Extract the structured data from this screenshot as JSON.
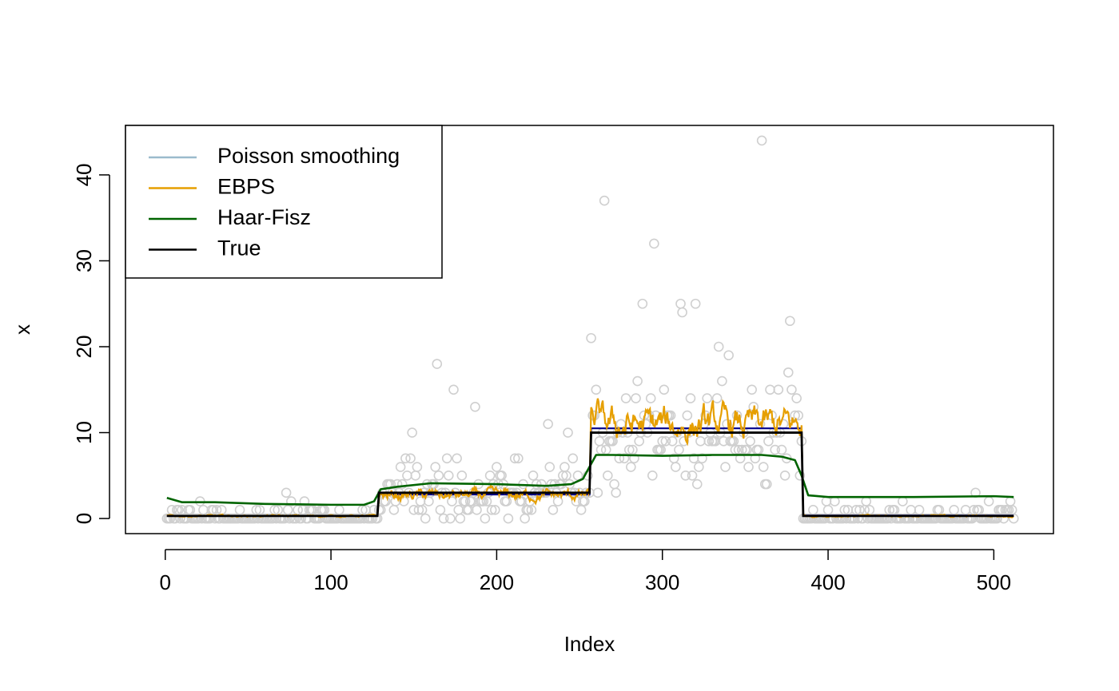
{
  "chart_data": {
    "type": "scatter",
    "title": "",
    "xlabel": "Index",
    "ylabel": "x",
    "xlim": [
      0,
      512
    ],
    "ylim": [
      0,
      44
    ],
    "xticks": [
      0,
      100,
      200,
      300,
      400,
      500
    ],
    "yticks": [
      0,
      10,
      20,
      30,
      40
    ],
    "grid": false,
    "legend": {
      "placement": "top-left",
      "entries": [
        {
          "label": "Poisson smoothing",
          "color": "#9bbbcc"
        },
        {
          "label": "EBPS",
          "color": "#e69f00"
        },
        {
          "label": "Haar-Fisz",
          "color": "#006400"
        },
        {
          "label": "True",
          "color": "#000000"
        }
      ]
    },
    "colors": {
      "points": "#cfcfcf",
      "poisson_smoothing": "#00008b",
      "ebps": "#e69f00",
      "haar_fisz": "#006400",
      "true": "#000000"
    },
    "true_signal": {
      "segments": [
        {
          "x_start": 1,
          "x_end": 128,
          "y": 0.3
        },
        {
          "x_start": 129,
          "x_end": 256,
          "y": 3
        },
        {
          "x_start": 257,
          "x_end": 384,
          "y": 10
        },
        {
          "x_start": 385,
          "x_end": 512,
          "y": 0.3
        }
      ]
    },
    "poisson_smoothing_level": [
      {
        "x_start": 1,
        "x_end": 128,
        "y": 0.3
      },
      {
        "x_start": 129,
        "x_end": 256,
        "y": 2.8
      },
      {
        "x_start": 257,
        "x_end": 384,
        "y": 10.5
      },
      {
        "x_start": 385,
        "x_end": 512,
        "y": 0.35
      }
    ],
    "haar_fisz": {
      "x": [
        1,
        10,
        30,
        60,
        100,
        120,
        126,
        130,
        140,
        160,
        200,
        230,
        245,
        252,
        256,
        260,
        270,
        300,
        330,
        360,
        372,
        380,
        384,
        388,
        400,
        450,
        500,
        512
      ],
      "y": [
        2.4,
        1.9,
        1.9,
        1.7,
        1.6,
        1.6,
        2.0,
        3.4,
        3.7,
        4.1,
        4.0,
        3.8,
        4.0,
        4.6,
        6.0,
        7.4,
        7.4,
        7.3,
        7.4,
        7.4,
        7.2,
        6.8,
        5.0,
        2.7,
        2.5,
        2.5,
        2.6,
        2.5
      ]
    },
    "ebps_approx": {
      "segments": [
        {
          "x_start": 1,
          "x_end": 128,
          "mean": 0.3,
          "spread": 0.1
        },
        {
          "x_start": 129,
          "x_end": 256,
          "mean": 2.7,
          "spread": 0.6
        },
        {
          "x_start": 257,
          "x_end": 384,
          "mean": 10.8,
          "spread": 1.8
        },
        {
          "x_start": 385,
          "x_end": 512,
          "mean": 0.3,
          "spread": 0.1
        }
      ]
    },
    "notable_points": [
      {
        "x": 73,
        "y": 3
      },
      {
        "x": 84,
        "y": 2
      },
      {
        "x": 149,
        "y": 10
      },
      {
        "x": 164,
        "y": 18
      },
      {
        "x": 174,
        "y": 15
      },
      {
        "x": 187,
        "y": 13
      },
      {
        "x": 231,
        "y": 11
      },
      {
        "x": 243,
        "y": 10
      },
      {
        "x": 257,
        "y": 21
      },
      {
        "x": 265,
        "y": 37
      },
      {
        "x": 288,
        "y": 25
      },
      {
        "x": 295,
        "y": 32
      },
      {
        "x": 311,
        "y": 25
      },
      {
        "x": 312,
        "y": 24
      },
      {
        "x": 320,
        "y": 25
      },
      {
        "x": 334,
        "y": 20
      },
      {
        "x": 360,
        "y": 44
      },
      {
        "x": 377,
        "y": 23
      },
      {
        "x": 370,
        "y": 15
      },
      {
        "x": 489,
        "y": 3
      }
    ],
    "point_generation_means": [
      {
        "x_start": 1,
        "x_end": 128,
        "mean": 0.3
      },
      {
        "x_start": 129,
        "x_end": 256,
        "mean": 3
      },
      {
        "x_start": 257,
        "x_end": 384,
        "mean": 10
      },
      {
        "x_start": 385,
        "x_end": 512,
        "mean": 0.3
      }
    ]
  }
}
